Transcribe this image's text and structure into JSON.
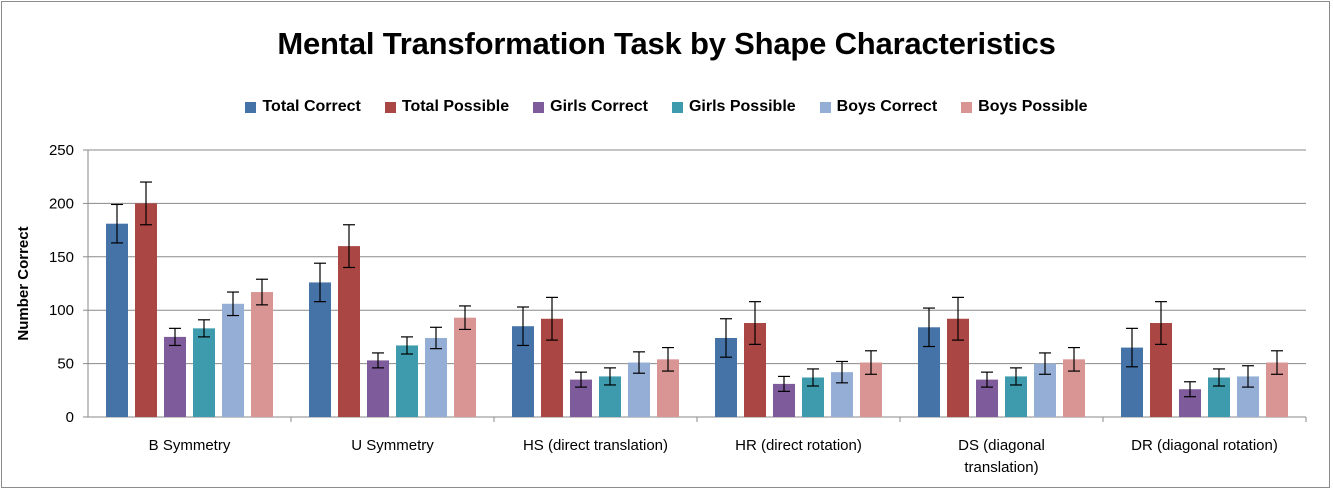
{
  "chart_data": {
    "type": "bar",
    "title": "Mental Transformation Task by Shape Characteristics",
    "xlabel": "",
    "ylabel": "Number Correct",
    "ylim": [
      0,
      250
    ],
    "yticks": [
      0,
      50,
      100,
      150,
      200,
      250
    ],
    "grid": true,
    "legend_position": "top",
    "categories": [
      [
        "B Symmetry"
      ],
      [
        "U Symmetry"
      ],
      [
        "HS (direct translation)"
      ],
      [
        "HR (direct rotation)"
      ],
      [
        "DS (diagonal",
        "translation)"
      ],
      [
        "DR (diagonal rotation)"
      ]
    ],
    "series": [
      {
        "name": "Total Correct",
        "color": "#4572a7",
        "values": [
          181,
          126,
          85,
          74,
          84,
          65
        ],
        "error": [
          18,
          18,
          18,
          18,
          18,
          18
        ]
      },
      {
        "name": "Total Possible",
        "color": "#aa4643",
        "values": [
          200,
          160,
          92,
          88,
          92,
          88
        ],
        "error": [
          20,
          20,
          20,
          20,
          20,
          20
        ]
      },
      {
        "name": "Girls Correct",
        "color": "#7e5b9a",
        "values": [
          75,
          53,
          35,
          31,
          35,
          26
        ],
        "error": [
          8,
          7,
          7,
          7,
          7,
          7
        ]
      },
      {
        "name": "Girls Possible",
        "color": "#3d9bad",
        "values": [
          83,
          67,
          38,
          37,
          38,
          37
        ],
        "error": [
          8,
          8,
          8,
          8,
          8,
          8
        ]
      },
      {
        "name": "Boys Correct",
        "color": "#94aed6",
        "values": [
          106,
          74,
          51,
          42,
          50,
          38
        ],
        "error": [
          11,
          10,
          10,
          10,
          10,
          10
        ]
      },
      {
        "name": "Boys Possible",
        "color": "#d99594",
        "values": [
          117,
          93,
          54,
          51,
          54,
          51
        ],
        "error": [
          12,
          11,
          11,
          11,
          11,
          11
        ]
      }
    ]
  }
}
